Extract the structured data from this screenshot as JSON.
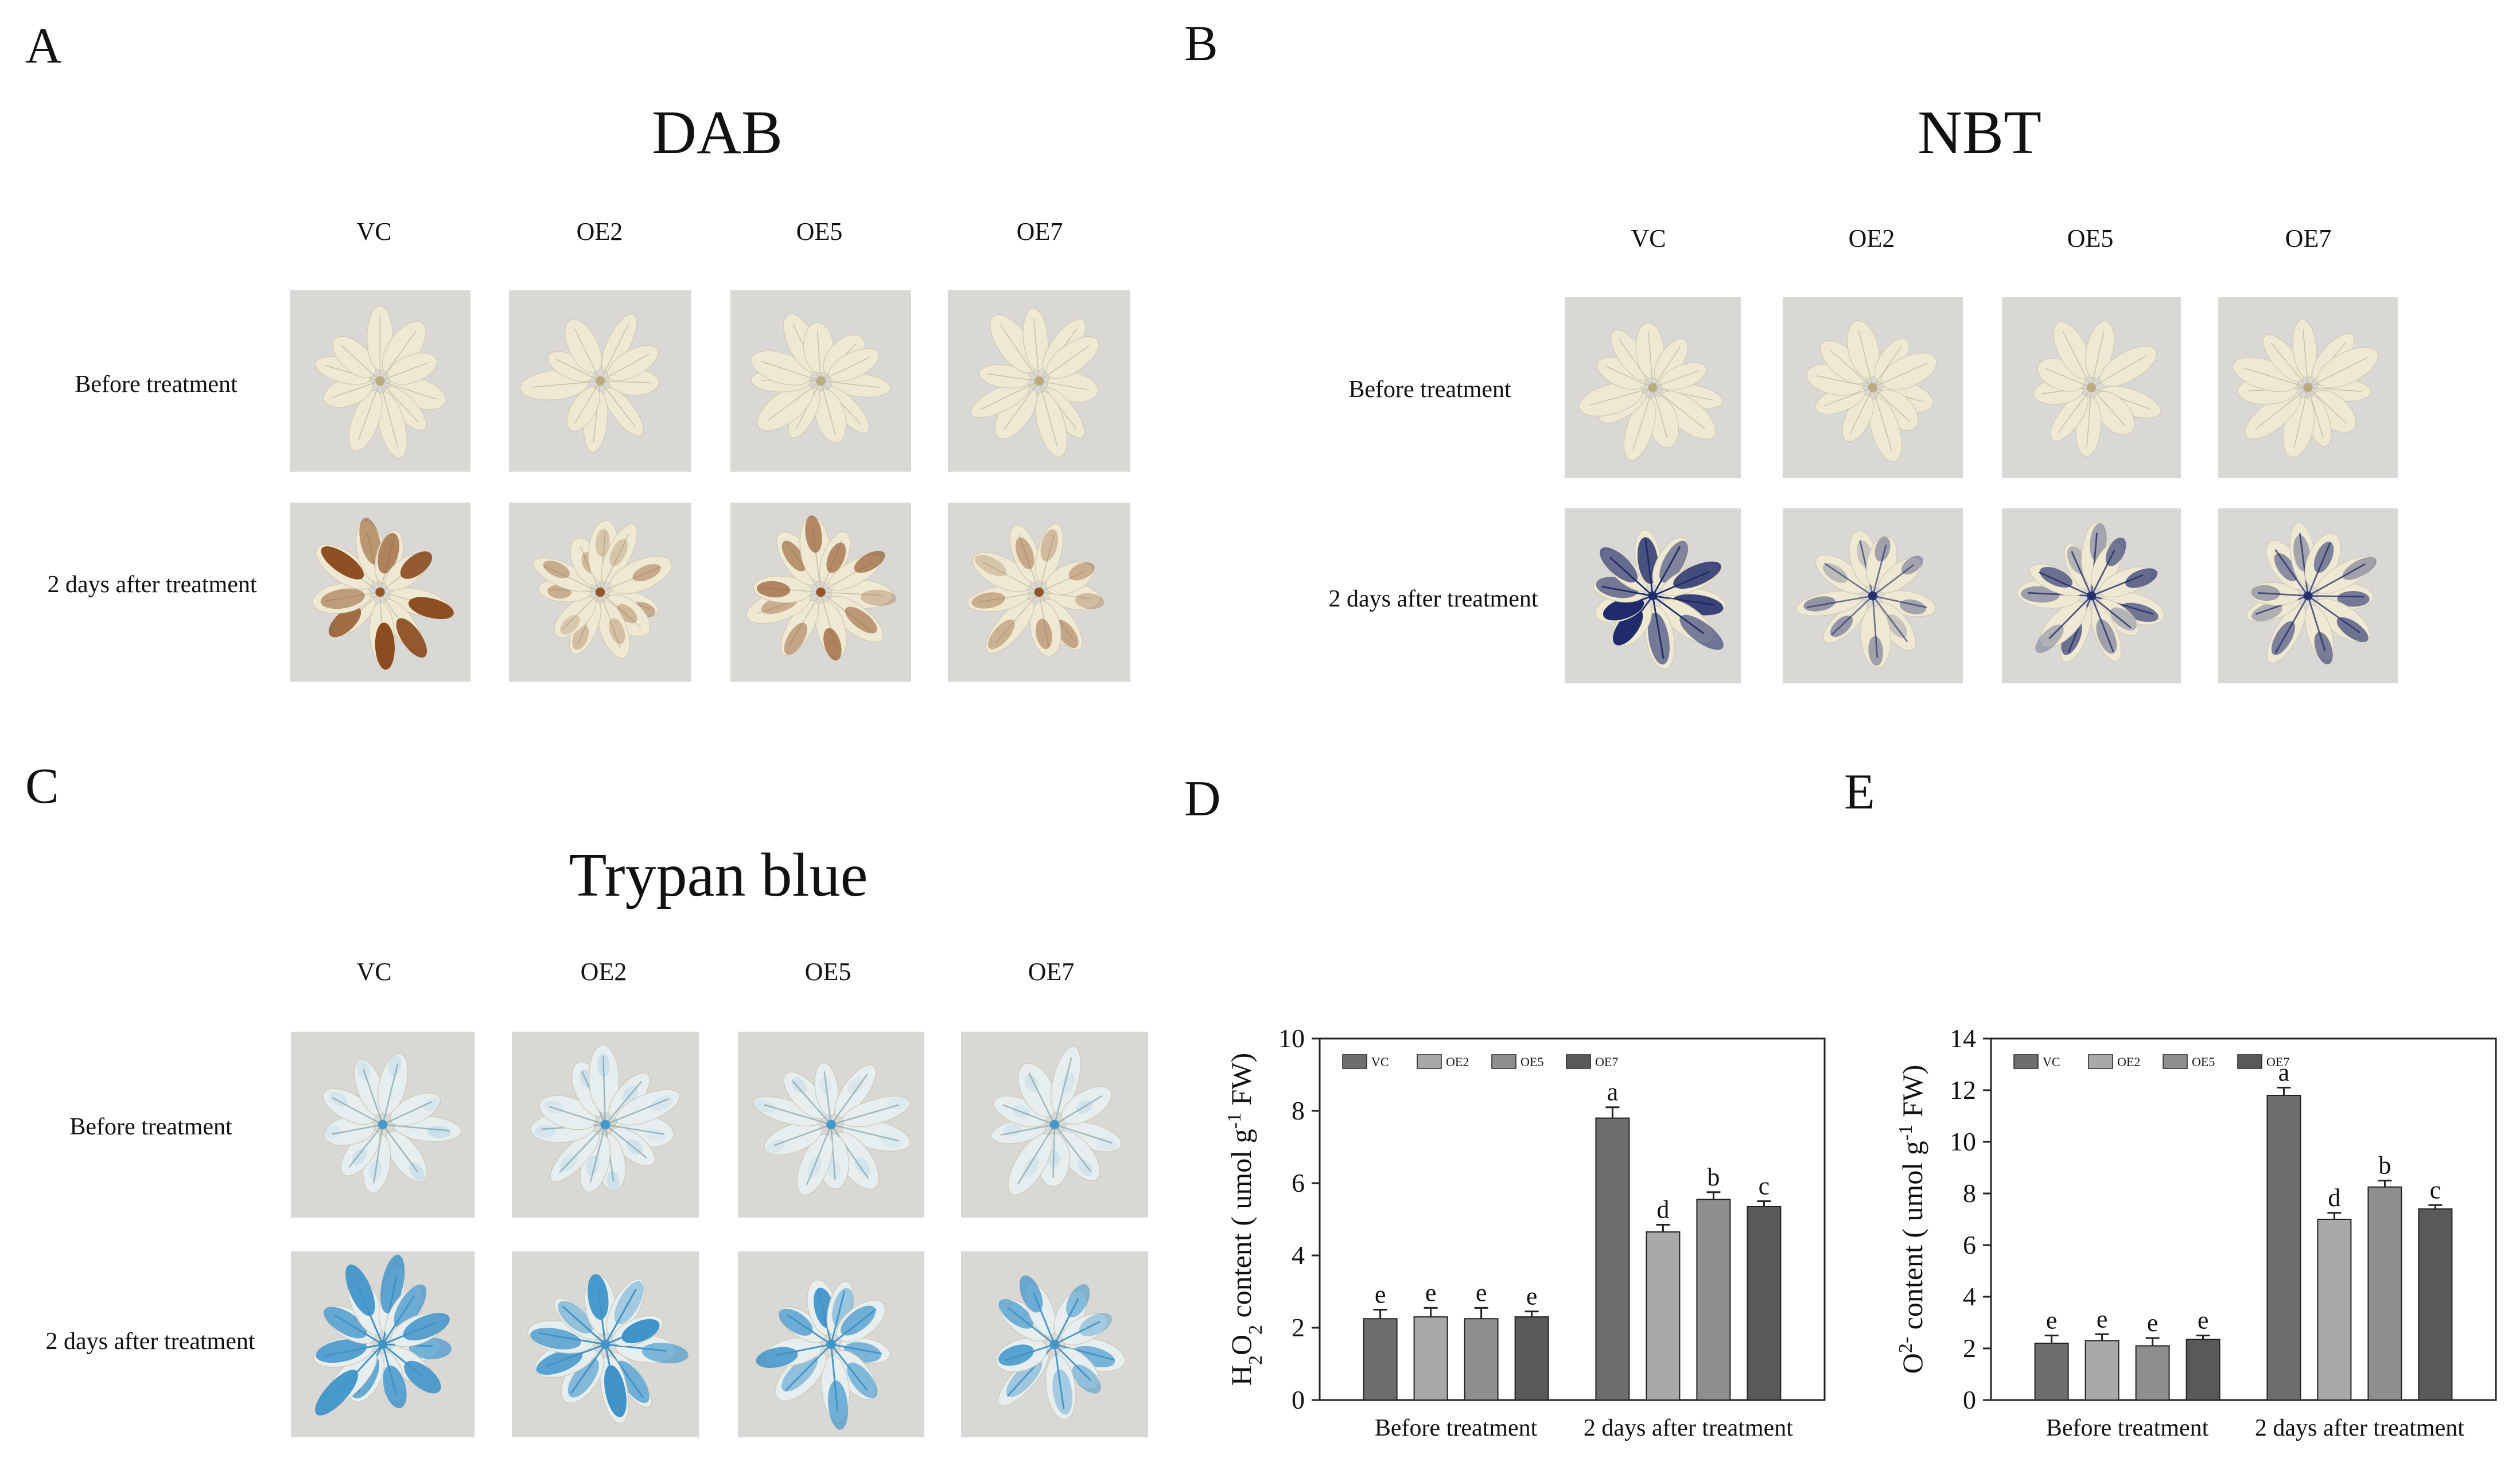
{
  "panels": {
    "A": {
      "letter": "A",
      "title": "DAB",
      "columns": [
        "VC",
        "OE2",
        "OE5",
        "OE7"
      ],
      "rows": [
        "Before treatment",
        "2 days after treatment"
      ]
    },
    "B": {
      "letter": "B",
      "title": "NBT",
      "columns": [
        "VC",
        "OE2",
        "OE5",
        "OE7"
      ],
      "rows": [
        "Before treatment",
        "2 days after treatment"
      ]
    },
    "C": {
      "letter": "C",
      "title": "Trypan blue",
      "columns": [
        "VC",
        "OE2",
        "OE5",
        "OE7"
      ],
      "rows": [
        "Before treatment",
        "2 days after treatment"
      ]
    },
    "D": {
      "letter": "D"
    },
    "E": {
      "letter": "E"
    }
  },
  "colors": {
    "photo_bg": "#d9d8d4",
    "leaf_pale": "#efe9d3",
    "dab_stain": "#8a4a1c",
    "nbt_stain": "#1f2b6a",
    "trypan_stain": "#3f93c9",
    "bar_VC": "#6e6e6e",
    "bar_OE2": "#a9a9a9",
    "bar_OE5": "#8e8e8e",
    "bar_OE7": "#595959"
  },
  "chart_data": [
    {
      "type": "bar",
      "ylabel": "H2O2 content ( umol g-1 FW)",
      "ylim": [
        0,
        10
      ],
      "yticks": [
        0,
        2,
        4,
        6,
        8,
        10
      ],
      "categories": [
        "Before treatment",
        "2 days after treatment"
      ],
      "legend_position": "top-left",
      "series": [
        {
          "name": "VC",
          "values": [
            2.25,
            7.8
          ],
          "errors": [
            0.25,
            0.3
          ],
          "letters": [
            "e",
            "a"
          ]
        },
        {
          "name": "OE2",
          "values": [
            2.3,
            4.65
          ],
          "errors": [
            0.25,
            0.2
          ],
          "letters": [
            "e",
            "d"
          ]
        },
        {
          "name": "OE5",
          "values": [
            2.25,
            5.55
          ],
          "errors": [
            0.3,
            0.2
          ],
          "letters": [
            "e",
            "b"
          ]
        },
        {
          "name": "OE7",
          "values": [
            2.3,
            5.35
          ],
          "errors": [
            0.15,
            0.15
          ],
          "letters": [
            "e",
            "c"
          ]
        }
      ]
    },
    {
      "type": "bar",
      "ylabel": "O2- content ( umol g-1 FW)",
      "ylim": [
        0,
        14
      ],
      "yticks": [
        0,
        2,
        4,
        6,
        8,
        10,
        12,
        14
      ],
      "categories": [
        "Before treatment",
        "2 days after treatment"
      ],
      "legend_position": "top-left",
      "series": [
        {
          "name": "VC",
          "values": [
            2.2,
            11.8
          ],
          "errors": [
            0.3,
            0.3
          ],
          "letters": [
            "e",
            "a"
          ]
        },
        {
          "name": "OE2",
          "values": [
            2.3,
            7.0
          ],
          "errors": [
            0.25,
            0.25
          ],
          "letters": [
            "e",
            "d"
          ]
        },
        {
          "name": "OE5",
          "values": [
            2.1,
            8.25
          ],
          "errors": [
            0.3,
            0.25
          ],
          "letters": [
            "e",
            "b"
          ]
        },
        {
          "name": "OE7",
          "values": [
            2.35,
            7.4
          ],
          "errors": [
            0.15,
            0.15
          ],
          "letters": [
            "e",
            "c"
          ]
        }
      ]
    }
  ]
}
